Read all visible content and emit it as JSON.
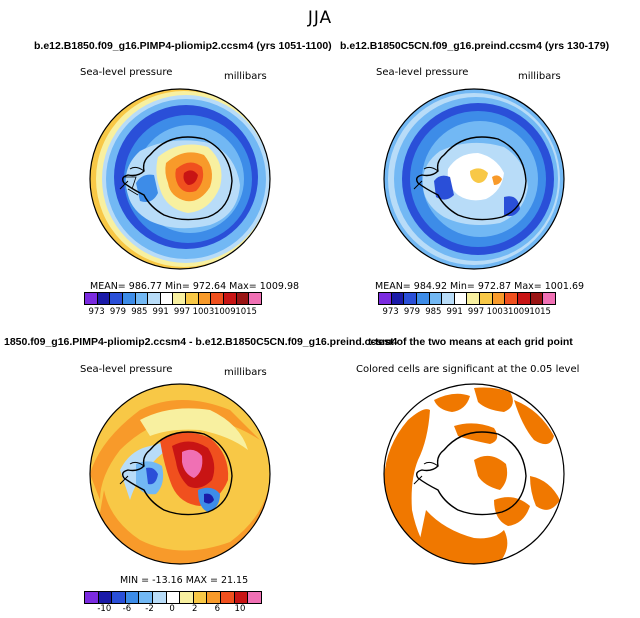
{
  "figure": {
    "season": "JJA",
    "panel_titles": {
      "top_left": "b.e12.B1850.f09_g16.PIMP4-pliomip2.ccsm4 (yrs 1051-1100)",
      "top_right": "b.e12.B1850C5CN.f09_g16.preind.ccsm4 (yrs 130-179)",
      "bottom_left": "1850.f09_g16.PIMP4-pliomip2.ccsm4 - b.e12.B1850C5CN.f09_g16.preind.ccsm4",
      "bottom_right": "t-test of the two means at each grid point"
    }
  },
  "panels": {
    "top_left": {
      "variable": "Sea-level pressure",
      "units": "millibars",
      "stats": "MEAN= 986.77    Min= 972.64    Max= 1009.98"
    },
    "top_right": {
      "variable": "Sea-level pressure",
      "units": "millibars",
      "stats": "MEAN= 984.92    Min= 972.87    Max= 1001.69"
    },
    "bottom_left": {
      "variable": "Sea-level pressure",
      "units": "millibars",
      "stats": "MIN = -13.16  MAX =  21.15"
    },
    "bottom_right": {
      "note": "Colored cells are significant at the 0.05 level"
    }
  },
  "colorbars": {
    "absolute": {
      "colors": [
        "#7b2be0",
        "#1a1aa8",
        "#2a4fd8",
        "#3d8ce8",
        "#72b8f4",
        "#b8dcf8",
        "#ffffff",
        "#f8f0a0",
        "#f8c846",
        "#f89a2a",
        "#f0501e",
        "#c81414",
        "#9a1414",
        "#f070b4"
      ],
      "labels": [
        "973",
        "979",
        "985",
        "991",
        "997",
        "1003",
        "1009",
        "1015"
      ]
    },
    "difference": {
      "colors": [
        "#7b2be0",
        "#1a1aa8",
        "#2a4fd8",
        "#3d8ce8",
        "#72b8f4",
        "#b8dcf8",
        "#ffffff",
        "#f8f0a0",
        "#f8c846",
        "#f89a2a",
        "#f0501e",
        "#c81414",
        "#f070b4"
      ],
      "labels": [
        "-10",
        "-6",
        "-2",
        "0",
        "2",
        "6",
        "10"
      ]
    },
    "significance_color": "#f07800"
  }
}
